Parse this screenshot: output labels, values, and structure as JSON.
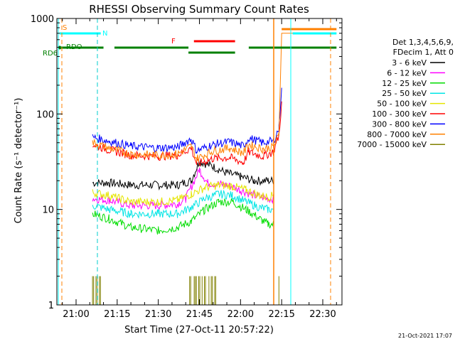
{
  "title": "RHESSI Observing Summary Count Rates",
  "stamp": "21-Oct-2021 17:07",
  "chart_data": {
    "type": "line",
    "title": "RHESSI Observing Summary Count Rates",
    "xlabel": "Start Time (27-Oct-11 20:57:22)",
    "ylabel": "Count Rate (s⁻¹ detector⁻¹)",
    "yscale": "log",
    "ylim": [
      1,
      1000
    ],
    "xlim": [
      "20:53",
      "22:37"
    ],
    "x_ticks": [
      "21:00",
      "21:15",
      "21:30",
      "21:45",
      "22:00",
      "22:15",
      "22:30"
    ],
    "y_ticks": [
      1,
      10,
      100,
      1000
    ],
    "y_tick_labels": [
      "1",
      "10",
      "100",
      "1000"
    ],
    "legend_header": [
      "Det 1,3,4,5,6,9,",
      "FDecim 1, Att 0"
    ],
    "legend_position": "right",
    "series": [
      {
        "name": "3 - 6 keV",
        "color": "#000000",
        "points": [
          [
            "21:06",
            19
          ],
          [
            "21:12",
            19
          ],
          [
            "21:20",
            18
          ],
          [
            "21:30",
            18
          ],
          [
            "21:37",
            18
          ],
          [
            "21:42",
            20
          ],
          [
            "21:45",
            32
          ],
          [
            "21:50",
            28
          ],
          [
            "21:55",
            24
          ],
          [
            "22:00",
            22
          ],
          [
            "22:05",
            20
          ],
          [
            "22:10",
            20
          ],
          [
            "22:12",
            20
          ]
        ]
      },
      {
        "name": "6 - 12 keV",
        "color": "#ff00ff",
        "points": [
          [
            "21:06",
            13
          ],
          [
            "21:12",
            12.5
          ],
          [
            "21:20",
            11
          ],
          [
            "21:30",
            11
          ],
          [
            "21:37",
            11.5
          ],
          [
            "21:40",
            13
          ],
          [
            "21:45",
            26
          ],
          [
            "21:48",
            19
          ],
          [
            "21:55",
            18
          ],
          [
            "22:00",
            16
          ],
          [
            "22:05",
            14
          ],
          [
            "22:10",
            13
          ],
          [
            "22:12",
            13
          ]
        ]
      },
      {
        "name": "12 - 25 keV",
        "color": "#00dd00",
        "points": [
          [
            "21:06",
            9
          ],
          [
            "21:12",
            8
          ],
          [
            "21:20",
            6.5
          ],
          [
            "21:30",
            6
          ],
          [
            "21:37",
            6.5
          ],
          [
            "21:42",
            7.5
          ],
          [
            "21:47",
            10
          ],
          [
            "21:52",
            12
          ],
          [
            "21:57",
            12
          ],
          [
            "22:02",
            10
          ],
          [
            "22:07",
            8
          ],
          [
            "22:10",
            7
          ],
          [
            "22:12",
            7
          ]
        ]
      },
      {
        "name": "25 - 50 keV",
        "color": "#00e5e5",
        "points": [
          [
            "21:06",
            11
          ],
          [
            "21:12",
            10
          ],
          [
            "21:20",
            9
          ],
          [
            "21:30",
            9
          ],
          [
            "21:37",
            9
          ],
          [
            "21:42",
            10.5
          ],
          [
            "21:47",
            13
          ],
          [
            "21:52",
            14.5
          ],
          [
            "21:57",
            14
          ],
          [
            "22:02",
            12
          ],
          [
            "22:07",
            10.5
          ],
          [
            "22:10",
            10
          ],
          [
            "22:12",
            10
          ]
        ]
      },
      {
        "name": "50 - 100 keV",
        "color": "#e5e500",
        "points": [
          [
            "21:06",
            15
          ],
          [
            "21:12",
            14
          ],
          [
            "21:20",
            12
          ],
          [
            "21:30",
            12
          ],
          [
            "21:37",
            12.5
          ],
          [
            "21:42",
            14.5
          ],
          [
            "21:47",
            17
          ],
          [
            "21:52",
            18
          ],
          [
            "21:57",
            17.5
          ],
          [
            "22:02",
            16
          ],
          [
            "22:07",
            14
          ],
          [
            "22:10",
            13.5
          ],
          [
            "22:12",
            14
          ]
        ]
      },
      {
        "name": "100 - 300 keV",
        "color": "#ff0000",
        "points": [
          [
            "21:06",
            48
          ],
          [
            "21:12",
            42
          ],
          [
            "21:20",
            37
          ],
          [
            "21:30",
            36
          ],
          [
            "21:37",
            37
          ],
          [
            "21:42",
            44
          ],
          [
            "21:44",
            30
          ],
          [
            "21:50",
            34
          ],
          [
            "21:56",
            35
          ],
          [
            "22:01",
            31
          ],
          [
            "22:03",
            40
          ],
          [
            "22:08",
            36
          ],
          [
            "22:12",
            40
          ],
          [
            "22:14",
            60
          ],
          [
            "22:15",
            130
          ]
        ]
      },
      {
        "name": "300 - 800 keV",
        "color": "#0000ff",
        "points": [
          [
            "21:06",
            57
          ],
          [
            "21:12",
            52
          ],
          [
            "21:20",
            46
          ],
          [
            "21:30",
            44
          ],
          [
            "21:37",
            45
          ],
          [
            "21:42",
            55
          ],
          [
            "21:44",
            41
          ],
          [
            "21:50",
            48
          ],
          [
            "21:56",
            51
          ],
          [
            "22:01",
            46
          ],
          [
            "22:03",
            56
          ],
          [
            "22:08",
            50
          ],
          [
            "22:12",
            52
          ],
          [
            "22:14",
            70
          ],
          [
            "22:15",
            200
          ]
        ]
      },
      {
        "name": "800 - 7000 keV",
        "color": "#ff8000",
        "points": [
          [
            "21:06",
            50
          ],
          [
            "21:12",
            44
          ],
          [
            "21:20",
            38
          ],
          [
            "21:30",
            37
          ],
          [
            "21:37",
            38
          ],
          [
            "21:42",
            46
          ],
          [
            "21:44",
            34
          ],
          [
            "21:50",
            41
          ],
          [
            "21:56",
            44
          ],
          [
            "22:01",
            39
          ],
          [
            "22:03",
            48
          ],
          [
            "22:08",
            43
          ],
          [
            "22:12",
            45
          ],
          [
            "22:14",
            60
          ],
          [
            "22:15",
            700
          ],
          [
            "22:35",
            700
          ]
        ]
      },
      {
        "name": "7000 - 15000 keV",
        "color": "#808000",
        "points": [
          [
            "21:06",
            2
          ],
          [
            "21:09",
            2
          ],
          [
            "21:41",
            2
          ],
          [
            "21:51",
            2
          ],
          [
            "22:14",
            2
          ]
        ]
      }
    ],
    "flags": [
      {
        "label": "S",
        "color": "#ff8000"
      },
      {
        "label": "N",
        "color": "#00ffff"
      },
      {
        "label": "F",
        "color": "#ff0000"
      },
      {
        "label": "RDO",
        "color": "#008000"
      },
      {
        "label": "RD6",
        "color": "#008000"
      }
    ]
  }
}
